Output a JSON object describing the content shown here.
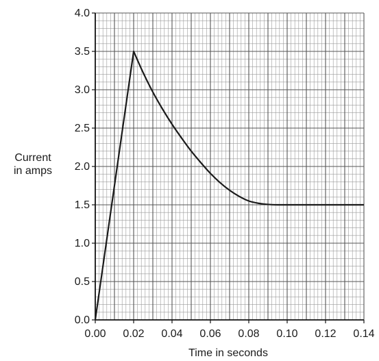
{
  "chart_data": {
    "type": "line",
    "title": "",
    "xlabel": "Time in seconds",
    "ylabel": [
      "Current",
      "in amps"
    ],
    "xlim": [
      0,
      0.14
    ],
    "ylim": [
      0,
      4.0
    ],
    "grid": true,
    "x_ticks": [
      "0.00",
      "0.02",
      "0.04",
      "0.06",
      "0.08",
      "0.10",
      "0.12",
      "0.14"
    ],
    "y_ticks": [
      "0.0",
      "0.5",
      "1.0",
      "1.5",
      "2.0",
      "2.5",
      "3.0",
      "3.5",
      "4.0"
    ],
    "series": [
      {
        "x": [
          0,
          0.02,
          0.025,
          0.03,
          0.035,
          0.04,
          0.045,
          0.05,
          0.055,
          0.06,
          0.065,
          0.07,
          0.075,
          0.08,
          0.085,
          0.09,
          0.095,
          0.1,
          0.11,
          0.12,
          0.13,
          0.14
        ],
        "y": [
          0,
          3.5,
          3.22,
          2.97,
          2.75,
          2.55,
          2.37,
          2.2,
          2.05,
          1.91,
          1.79,
          1.69,
          1.61,
          1.55,
          1.52,
          1.505,
          1.5,
          1.5,
          1.5,
          1.5,
          1.5,
          1.5
        ]
      }
    ]
  }
}
